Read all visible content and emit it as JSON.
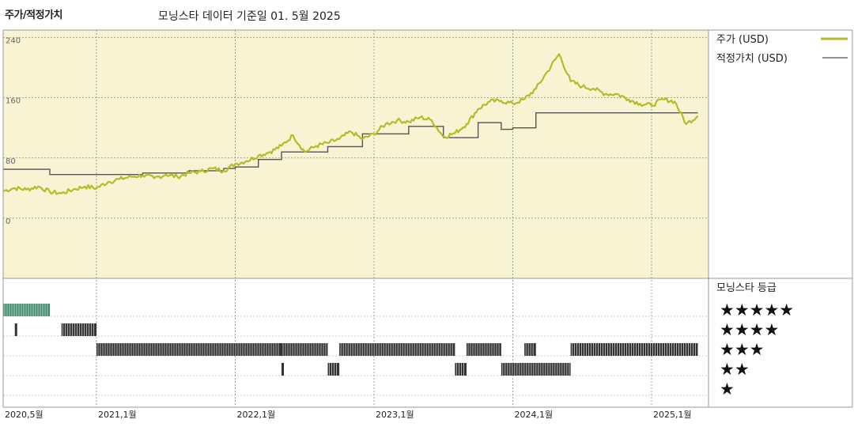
{
  "header": {
    "title": "주가/적정가치",
    "subtitle": "모닝스타 데이터 기준일 01. 5월 2025"
  },
  "legend": {
    "price_label": "주가 (USD)",
    "fair_label": "적정가치 (USD)",
    "rating_title": "모닝스타 등급",
    "stars": [
      "★★★★★",
      "★★★★",
      "★★★",
      "★★",
      "★"
    ]
  },
  "colors": {
    "price": "#b3bd2a",
    "fair": "#555555",
    "plot_bg": "#f8f3d2",
    "five_star": "#3f8a6c",
    "bars": "#333333"
  },
  "chart_data": {
    "type": "line",
    "title": "주가/적정가치",
    "subtitle": "모닝스타 데이터 기준일 01. 5월 2025",
    "ylim": [
      -80,
      250
    ],
    "yticks": [
      0,
      80,
      160,
      240
    ],
    "xticks": [
      "2020,5월",
      "2021,1월",
      "2022,1월",
      "2023,1월",
      "2024,1월",
      "2025,1월"
    ],
    "grid": true,
    "legend_position": "right",
    "series": [
      {
        "name": "주가 (USD)",
        "points": [
          [
            "2020-05",
            36
          ],
          [
            "2020-06",
            40
          ],
          [
            "2020-07",
            38
          ],
          [
            "2020-08",
            42
          ],
          [
            "2020-09",
            35
          ],
          [
            "2020-10",
            33
          ],
          [
            "2020-11",
            38
          ],
          [
            "2020-12",
            42
          ],
          [
            "2021-01",
            40
          ],
          [
            "2021-02",
            48
          ],
          [
            "2021-03",
            52
          ],
          [
            "2021-04",
            55
          ],
          [
            "2021-05",
            57
          ],
          [
            "2021-06",
            53
          ],
          [
            "2021-07",
            58
          ],
          [
            "2021-08",
            55
          ],
          [
            "2021-09",
            60
          ],
          [
            "2021-10",
            62
          ],
          [
            "2021-11",
            66
          ],
          [
            "2021-12",
            63
          ],
          [
            "2022-01",
            72
          ],
          [
            "2022-02",
            76
          ],
          [
            "2022-03",
            83
          ],
          [
            "2022-04",
            88
          ],
          [
            "2022-05",
            96
          ],
          [
            "2022-06",
            110
          ],
          [
            "2022-07",
            88
          ],
          [
            "2022-08",
            96
          ],
          [
            "2022-09",
            100
          ],
          [
            "2022-10",
            105
          ],
          [
            "2022-11",
            115
          ],
          [
            "2022-12",
            105
          ],
          [
            "2023-01",
            112
          ],
          [
            "2023-02",
            125
          ],
          [
            "2023-03",
            130
          ],
          [
            "2023-04",
            128
          ],
          [
            "2023-05",
            134
          ],
          [
            "2023-06",
            130
          ],
          [
            "2023-07",
            108
          ],
          [
            "2023-08",
            113
          ],
          [
            "2023-09",
            125
          ],
          [
            "2023-10",
            145
          ],
          [
            "2023-11",
            155
          ],
          [
            "2023-12",
            156
          ],
          [
            "2024-01",
            152
          ],
          [
            "2024-02",
            158
          ],
          [
            "2024-03",
            172
          ],
          [
            "2024-04",
            195
          ],
          [
            "2024-05",
            218
          ],
          [
            "2024-06",
            182
          ],
          [
            "2024-07",
            175
          ],
          [
            "2024-08",
            172
          ],
          [
            "2024-09",
            165
          ],
          [
            "2024-10",
            165
          ],
          [
            "2024-11",
            158
          ],
          [
            "2024-12",
            152
          ],
          [
            "2025-01",
            150
          ],
          [
            "2025-02",
            158
          ],
          [
            "2025-03",
            155
          ],
          [
            "2025-04",
            125
          ],
          [
            "2025-05",
            136
          ]
        ]
      },
      {
        "name": "적정가치 (USD)",
        "step": true,
        "points": [
          [
            "2020-05",
            65
          ],
          [
            "2020-09",
            58
          ],
          [
            "2021-05",
            60
          ],
          [
            "2021-09",
            63
          ],
          [
            "2021-12",
            66
          ],
          [
            "2022-01",
            68
          ],
          [
            "2022-03",
            78
          ],
          [
            "2022-05",
            88
          ],
          [
            "2022-09",
            95
          ],
          [
            "2022-12",
            112
          ],
          [
            "2023-04",
            122
          ],
          [
            "2023-07",
            107
          ],
          [
            "2023-10",
            127
          ],
          [
            "2023-12",
            118
          ],
          [
            "2024-01",
            120
          ],
          [
            "2024-03",
            140
          ],
          [
            "2025-05",
            140
          ]
        ]
      }
    ],
    "ratings": {
      "stars_levels": [
        5,
        4,
        3,
        2,
        1
      ],
      "periods": [
        {
          "stars": 5,
          "from": "2020-05",
          "to": "2020-09"
        },
        {
          "stars": 4,
          "from": "2020-06",
          "to": "2020-06"
        },
        {
          "stars": 4,
          "from": "2020-10",
          "to": "2021-01"
        },
        {
          "stars": 3,
          "from": "2021-01",
          "to": "2022-05"
        },
        {
          "stars": 2,
          "from": "2022-05",
          "to": "2022-05"
        },
        {
          "stars": 3,
          "from": "2022-05",
          "to": "2022-09"
        },
        {
          "stars": 2,
          "from": "2022-09",
          "to": "2022-10"
        },
        {
          "stars": 3,
          "from": "2022-10",
          "to": "2023-08"
        },
        {
          "stars": 2,
          "from": "2023-08",
          "to": "2023-09"
        },
        {
          "stars": 3,
          "from": "2023-09",
          "to": "2023-12"
        },
        {
          "stars": 2,
          "from": "2023-12",
          "to": "2024-06"
        },
        {
          "stars": 3,
          "from": "2024-02",
          "to": "2024-03"
        },
        {
          "stars": 3,
          "from": "2024-06",
          "to": "2025-05"
        }
      ]
    }
  }
}
